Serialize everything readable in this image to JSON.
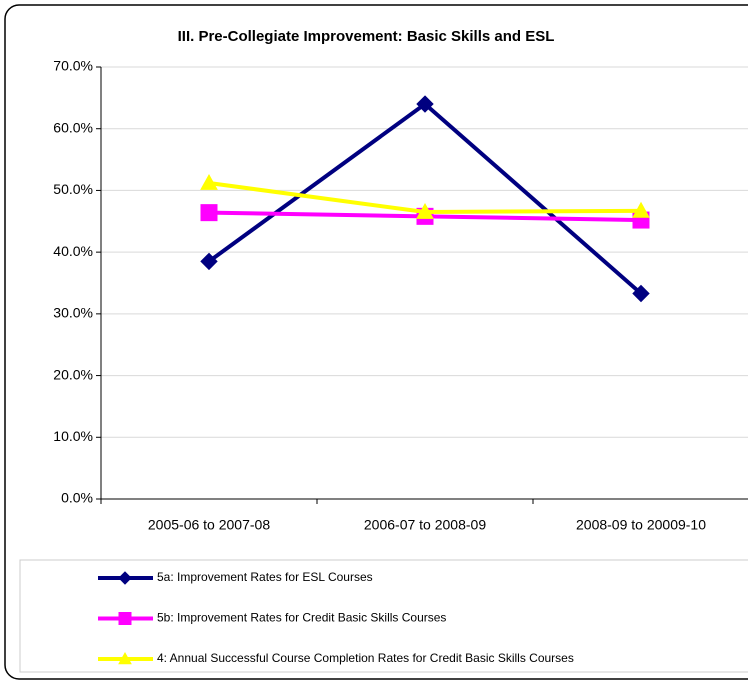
{
  "chart_data": {
    "type": "line",
    "title": "III.  Pre-Collegiate Improvement:  Basic Skills and ESL",
    "categories": [
      "2005-06 to 2007-08",
      "2006-07 to 2008-09",
      "2008-09 to 20009-10"
    ],
    "series": [
      {
        "name": "5a:  Improvement Rates for ESL Courses",
        "color": "#000080",
        "marker": "diamond",
        "values": [
          38.5,
          64.0,
          33.3
        ]
      },
      {
        "name": "5b:  Improvement Rates for Credit Basic Skills Courses",
        "color": "#FF00FF",
        "marker": "square",
        "values": [
          46.4,
          45.8,
          45.2
        ]
      },
      {
        "name": "4:  Annual Successful Course Completion Rates for Credit Basic Skills Courses",
        "color": "#FFFF00",
        "marker": "triangle",
        "values": [
          51.2,
          46.5,
          46.7
        ]
      }
    ],
    "ylim": [
      0,
      70
    ],
    "yticks": [
      {
        "value": 0,
        "label": "0.0%"
      },
      {
        "value": 10,
        "label": "10.0%"
      },
      {
        "value": 20,
        "label": "20.0%"
      },
      {
        "value": 30,
        "label": "30.0%"
      },
      {
        "value": 40,
        "label": "40.0%"
      },
      {
        "value": 50,
        "label": "50.0%"
      },
      {
        "value": 60,
        "label": "60.0%"
      },
      {
        "value": 70,
        "label": "70.0%"
      }
    ],
    "grid": true,
    "legend": "bottom"
  }
}
